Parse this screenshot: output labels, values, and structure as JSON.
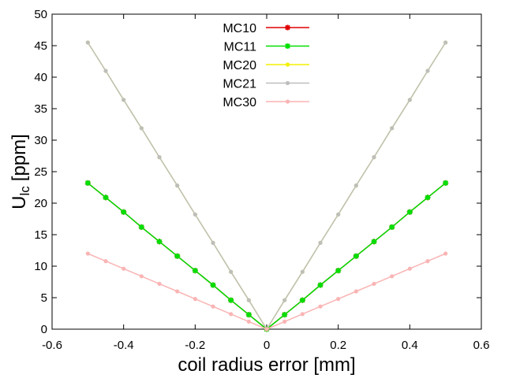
{
  "chart_data": {
    "type": "line",
    "xlabel": "coil radius error [mm]",
    "ylabel": {
      "main": "U",
      "sub": "lc",
      "unit": "[ppm]"
    },
    "xlim": [
      -0.6,
      0.6
    ],
    "ylim": [
      0,
      50
    ],
    "x_ticks": [
      "-0.6",
      "-0.4",
      "-0.2",
      "0",
      "0.2",
      "0.4",
      "0.6"
    ],
    "y_ticks": [
      "0",
      "5",
      "10",
      "15",
      "20",
      "25",
      "30",
      "35",
      "40",
      "45",
      "50"
    ],
    "grid": false,
    "legend_position": "top-center",
    "x": [
      -0.5,
      -0.45,
      -0.4,
      -0.35,
      -0.3,
      -0.25,
      -0.2,
      -0.15,
      -0.1,
      -0.05,
      0,
      0.05,
      0.1,
      0.15,
      0.2,
      0.25,
      0.3,
      0.35,
      0.4,
      0.45,
      0.5
    ],
    "series": [
      {
        "name": "MC10",
        "color": "#e00000",
        "marker": "star",
        "values": [
          23.2,
          20.9,
          18.6,
          16.2,
          13.9,
          11.6,
          9.3,
          7.0,
          4.6,
          2.3,
          0,
          2.3,
          4.6,
          7.0,
          9.3,
          11.6,
          13.9,
          16.2,
          18.6,
          20.9,
          23.2
        ]
      },
      {
        "name": "MC11",
        "color": "#00e000",
        "marker": "star",
        "values": [
          23.2,
          20.9,
          18.6,
          16.2,
          13.9,
          11.6,
          9.3,
          7.0,
          4.6,
          2.3,
          0,
          2.3,
          4.6,
          7.0,
          9.3,
          11.6,
          13.9,
          16.2,
          18.6,
          20.9,
          23.2
        ]
      },
      {
        "name": "MC20",
        "color": "#f2f000",
        "marker": "dot",
        "values": [
          45.5,
          41.0,
          36.4,
          31.9,
          27.3,
          22.8,
          18.2,
          13.7,
          9.1,
          4.6,
          0,
          4.6,
          9.1,
          13.7,
          18.2,
          22.8,
          27.3,
          31.9,
          36.4,
          41.0,
          45.5
        ]
      },
      {
        "name": "MC21",
        "color": "#bebebe",
        "marker": "dot",
        "values": [
          45.5,
          41.0,
          36.4,
          31.9,
          27.3,
          22.8,
          18.2,
          13.7,
          9.1,
          4.6,
          0,
          4.6,
          9.1,
          13.7,
          18.2,
          22.8,
          27.3,
          31.9,
          36.4,
          41.0,
          45.5
        ]
      },
      {
        "name": "MC30",
        "color": "#fab4b4",
        "marker": "dot",
        "values": [
          12.0,
          10.8,
          9.6,
          8.4,
          7.2,
          6.0,
          4.8,
          3.6,
          2.4,
          1.2,
          0,
          1.2,
          2.4,
          3.6,
          4.8,
          6.0,
          7.2,
          8.4,
          9.6,
          10.8,
          12.0
        ]
      }
    ]
  }
}
